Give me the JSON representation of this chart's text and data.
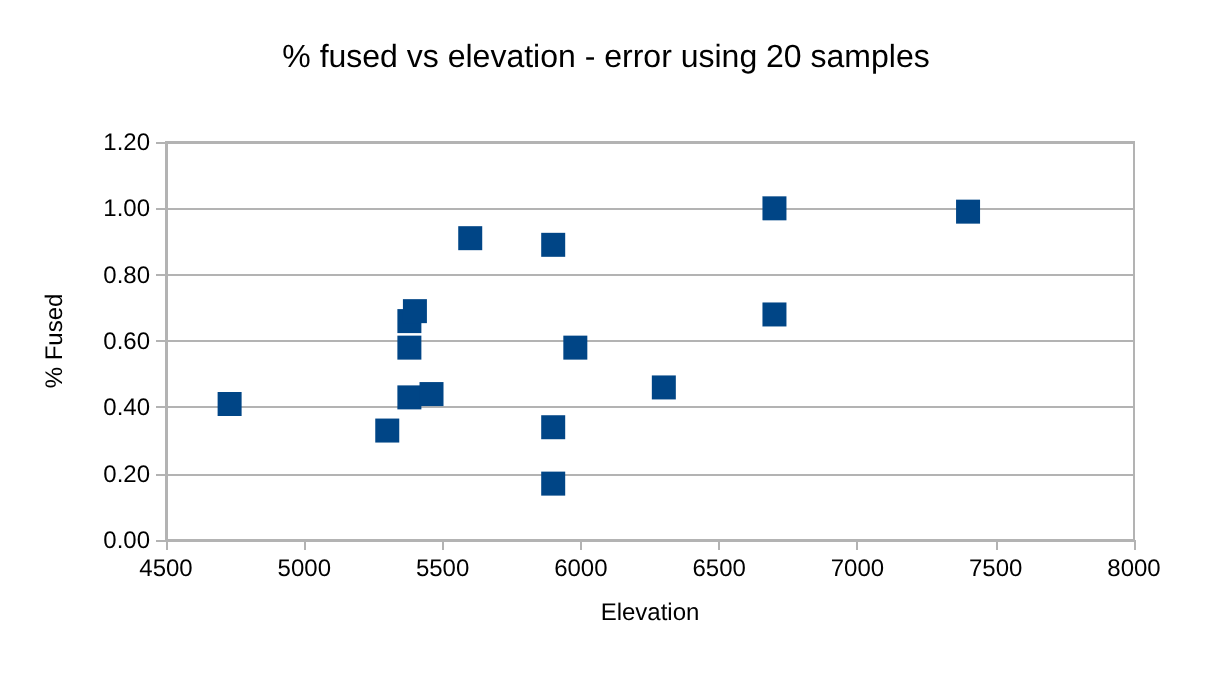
{
  "chart_data": {
    "type": "scatter",
    "title": "% fused vs elevation - error using 20 samples",
    "xlabel": "Elevation",
    "ylabel": "% Fused",
    "x": [
      4730,
      5300,
      5380,
      5400,
      5380,
      5380,
      5460,
      5600,
      5900,
      5900,
      5900,
      5980,
      6300,
      6700,
      6700,
      7400
    ],
    "series": [
      {
        "color": "#004586",
        "values": [
          0.41,
          0.33,
          0.66,
          0.69,
          0.58,
          0.43,
          0.44,
          0.91,
          0.89,
          0.34,
          0.17,
          0.58,
          0.46,
          1.0,
          0.68,
          0.99
        ]
      }
    ],
    "xlim": [
      4500,
      8000
    ],
    "xticks": [
      4500,
      5000,
      5500,
      6000,
      6500,
      7000,
      7500,
      8000
    ],
    "ylim": [
      0,
      1.2
    ],
    "yticks": [
      {
        "value": 0,
        "label": "0.00"
      },
      {
        "value": 0.2,
        "label": "0.20"
      },
      {
        "value": 0.4,
        "label": "0.40"
      },
      {
        "value": 0.6,
        "label": "0.60"
      },
      {
        "value": 0.8,
        "label": "0.80"
      },
      {
        "value": 1,
        "label": "1.00"
      },
      {
        "value": 1.2,
        "label": "1.20"
      }
    ],
    "grid": "y",
    "marker": "square"
  }
}
